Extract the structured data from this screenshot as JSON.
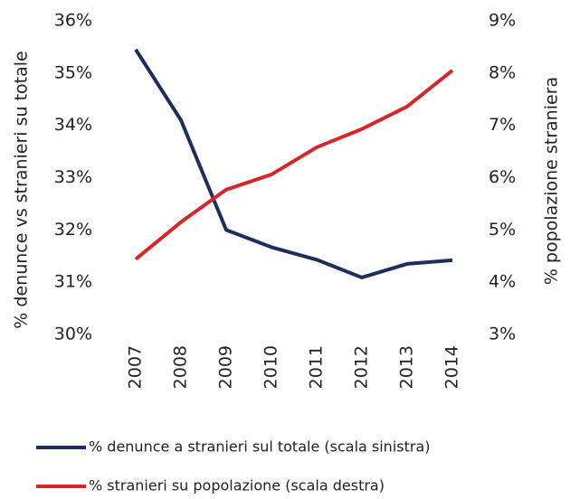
{
  "chart_data": {
    "type": "line",
    "categories": [
      "2007",
      "2008",
      "2009",
      "2010",
      "2011",
      "2012",
      "2013",
      "2014"
    ],
    "series": [
      {
        "name": "% denunce a stranieri sul totale (scala sinistra)",
        "color": "#1f2d5c",
        "values": [
          35.45,
          34.1,
          32.0,
          31.67,
          31.43,
          31.09,
          31.35,
          31.42
        ]
      },
      {
        "name": "% stranieri su popolazione (scala destra)",
        "color": "#d7262b",
        "axis": "y2",
        "values": [
          4.44,
          5.15,
          5.77,
          6.06,
          6.58,
          6.93,
          7.36,
          8.05
        ]
      }
    ],
    "ylabel": "% denunce vs stranieri su totale",
    "y2label": "% popolazione straniera",
    "ylim": [
      30,
      36
    ],
    "yticks": [
      {
        "value": 30,
        "label": "30%"
      },
      {
        "value": 31,
        "label": "31%"
      },
      {
        "value": 32,
        "label": "32%"
      },
      {
        "value": 33,
        "label": "33%"
      },
      {
        "value": 34,
        "label": "34%"
      },
      {
        "value": 35,
        "label": "35%"
      },
      {
        "value": 36,
        "label": "36%"
      }
    ],
    "y2lim": [
      3,
      9
    ],
    "y2ticks": [
      {
        "value": 3,
        "label": "3%"
      },
      {
        "value": 4,
        "label": "4%"
      },
      {
        "value": 5,
        "label": "5%"
      },
      {
        "value": 6,
        "label": "6%"
      },
      {
        "value": 7,
        "label": "7%"
      },
      {
        "value": 8,
        "label": "8%"
      },
      {
        "value": 9,
        "label": "9%"
      }
    ],
    "grid": false,
    "legend": "bottom"
  }
}
